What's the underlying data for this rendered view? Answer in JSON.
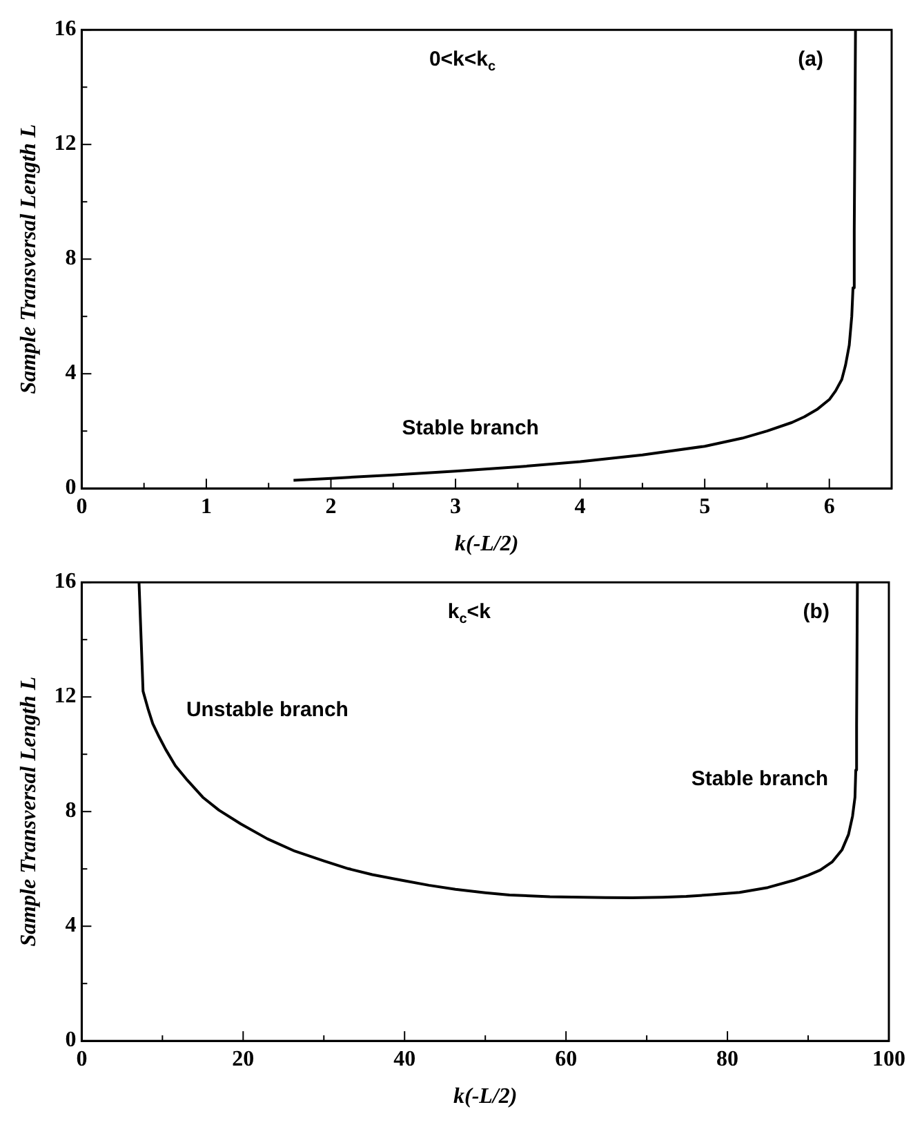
{
  "chart_data": [
    {
      "type": "line",
      "xlabel": "k(-L/2)",
      "ylabel": "Sample Transversal Length L",
      "marker": "none",
      "xlim": [
        0,
        6.5
      ],
      "xticks": [
        0,
        {
          "value": 0.5,
          "label": null
        },
        1,
        {
          "value": 1.5,
          "label": null
        },
        2,
        {
          "value": 2.5,
          "label": null
        },
        3,
        {
          "value": 3.5,
          "label": null
        },
        4,
        {
          "value": 4.5,
          "label": null
        },
        5,
        {
          "value": 5.5,
          "label": null
        },
        6
      ],
      "ylim": [
        0,
        16
      ],
      "yticks": [
        0,
        {
          "value": 2,
          "label": null
        },
        4,
        {
          "value": 6,
          "label": null
        },
        8,
        {
          "value": 10,
          "label": null
        },
        12,
        {
          "value": 14,
          "label": null
        },
        16
      ],
      "annotations": [
        "0<k<k$_{c}$",
        "(a)",
        "Stable branch"
      ],
      "series": [
        {
          "color": "#000000",
          "x": [
            1.7,
            2,
            2.5,
            3,
            3.5,
            4,
            4.5,
            5,
            5.3,
            5.5,
            5.7,
            5.8,
            5.9,
            6.0,
            6.05,
            6.1,
            6.13,
            6.16,
            6.18,
            6.19,
            6.2,
            6.21
          ],
          "values": [
            0.28,
            0.35,
            0.47,
            0.6,
            0.75,
            0.93,
            1.17,
            1.47,
            1.75,
            2.0,
            2.3,
            2.5,
            2.75,
            3.1,
            3.4,
            3.8,
            4.3,
            5,
            6,
            7,
            9,
            16
          ]
        }
      ]
    },
    {
      "type": "line",
      "xlabel": "k(-L/2)",
      "ylabel": "Sample Transversal Length L",
      "marker": "none",
      "xlim": [
        0,
        100
      ],
      "xticks": [
        0,
        {
          "value": 10,
          "label": null
        },
        20,
        {
          "value": 30,
          "label": null
        },
        40,
        {
          "value": 50,
          "label": null
        },
        60,
        {
          "value": 70,
          "label": null
        },
        80,
        {
          "value": 90,
          "label": null
        },
        100
      ],
      "ylim": [
        0,
        16
      ],
      "yticks": [
        0,
        {
          "value": 2,
          "label": null
        },
        4,
        {
          "value": 6,
          "label": null
        },
        8,
        {
          "value": 10,
          "label": null
        },
        12,
        {
          "value": 14,
          "label": null
        },
        16
      ],
      "annotations": [
        "k$_{c}$<k",
        "(b)",
        "Unstable branch",
        "Stable branch"
      ],
      "series": [
        {
          "color": "#000000",
          "x": [
            7.1,
            7.6,
            8.2,
            8.8,
            9.6,
            10.4,
            11.6,
            13.1,
            15,
            17,
            19.7,
            23,
            26.4,
            30,
            33,
            36,
            39.7,
            43,
            46.3,
            50,
            53,
            58,
            64.9,
            68.2,
            72,
            74.9,
            78,
            81.5,
            85,
            88.2,
            90,
            91.5,
            93,
            94.2,
            95,
            95.5,
            95.8,
            95.9,
            96,
            96.1
          ],
          "values": [
            16,
            12.2,
            11.6,
            11.07,
            10.6,
            10.17,
            9.6,
            9.09,
            8.5,
            8.05,
            7.57,
            7.05,
            6.62,
            6.28,
            6.01,
            5.8,
            5.6,
            5.43,
            5.29,
            5.17,
            5.09,
            5.03,
            5,
            4.99,
            5.01,
            5.04,
            5.1,
            5.18,
            5.35,
            5.6,
            5.78,
            5.96,
            6.25,
            6.67,
            7.2,
            7.84,
            8.5,
            9.45,
            11,
            16
          ]
        }
      ]
    }
  ]
}
